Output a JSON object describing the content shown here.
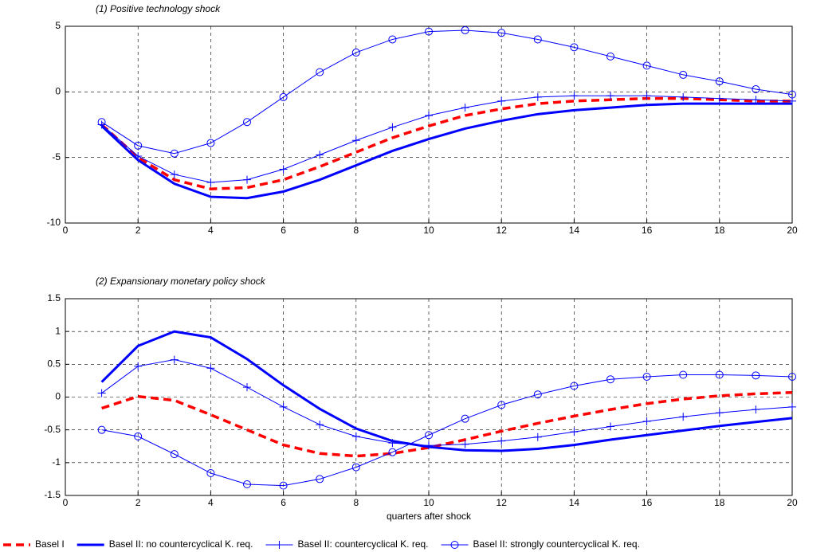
{
  "chart_data": [
    {
      "type": "line",
      "title": "(1) Positive technology shock",
      "x": [
        1,
        2,
        3,
        4,
        5,
        6,
        7,
        8,
        9,
        10,
        11,
        12,
        13,
        14,
        15,
        16,
        17,
        18,
        19,
        20
      ],
      "xlim": [
        0,
        20
      ],
      "xticks": [
        0,
        2,
        4,
        6,
        8,
        10,
        12,
        14,
        16,
        18,
        20
      ],
      "ylim": [
        -10,
        5
      ],
      "yticks": [
        -10,
        -5,
        0,
        5
      ],
      "grid": true,
      "legend": "bottom",
      "series": [
        {
          "name": "Basel I",
          "color": "#ff0000",
          "style": "dashed",
          "marker": "none",
          "linewidth": 3.5,
          "values": [
            -2.5,
            -5.0,
            -6.7,
            -7.4,
            -7.3,
            -6.7,
            -5.7,
            -4.6,
            -3.5,
            -2.6,
            -1.8,
            -1.3,
            -0.9,
            -0.7,
            -0.6,
            -0.5,
            -0.5,
            -0.6,
            -0.7,
            -0.7
          ]
        },
        {
          "name": "Basel II: no countercyclical K. req.",
          "color": "#0000ff",
          "style": "solid",
          "marker": "none",
          "linewidth": 3,
          "values": [
            -2.6,
            -5.2,
            -7.0,
            -8.0,
            -8.1,
            -7.6,
            -6.7,
            -5.6,
            -4.5,
            -3.6,
            -2.8,
            -2.2,
            -1.7,
            -1.4,
            -1.2,
            -1.0,
            -0.9,
            -0.9,
            -0.9,
            -0.9
          ]
        },
        {
          "name": "Basel II: countercyclical K. req.",
          "color": "#0000ff",
          "style": "solid",
          "marker": "plus",
          "linewidth": 1,
          "values": [
            -2.5,
            -4.9,
            -6.3,
            -6.9,
            -6.7,
            -5.9,
            -4.8,
            -3.7,
            -2.7,
            -1.8,
            -1.2,
            -0.7,
            -0.4,
            -0.3,
            -0.3,
            -0.3,
            -0.4,
            -0.5,
            -0.6,
            -0.7
          ]
        },
        {
          "name": "Basel II: strongly countercyclical K. req.",
          "color": "#0000ff",
          "style": "solid",
          "marker": "circle",
          "linewidth": 1,
          "values": [
            -2.3,
            -4.1,
            -4.7,
            -3.9,
            -2.3,
            -0.4,
            1.5,
            3.0,
            4.0,
            4.6,
            4.7,
            4.5,
            4.0,
            3.4,
            2.7,
            2.0,
            1.3,
            0.8,
            0.2,
            -0.2
          ]
        }
      ]
    },
    {
      "type": "line",
      "title": "(2) Expansionary monetary policy shock",
      "x_label": "quarters after shock",
      "x": [
        1,
        2,
        3,
        4,
        5,
        6,
        7,
        8,
        9,
        10,
        11,
        12,
        13,
        14,
        15,
        16,
        17,
        18,
        19,
        20
      ],
      "xlim": [
        0,
        20
      ],
      "xticks": [
        0,
        2,
        4,
        6,
        8,
        10,
        12,
        14,
        16,
        18,
        20
      ],
      "ylim": [
        -1.5,
        1.5
      ],
      "yticks": [
        -1.5,
        -1,
        -0.5,
        0,
        0.5,
        1,
        1.5
      ],
      "grid": true,
      "series": [
        {
          "color": "#ff0000",
          "style": "dashed",
          "marker": "none",
          "linewidth": 3.5,
          "values": [
            -0.17,
            0.01,
            -0.05,
            -0.27,
            -0.5,
            -0.73,
            -0.86,
            -0.9,
            -0.86,
            -0.77,
            -0.65,
            -0.52,
            -0.4,
            -0.29,
            -0.19,
            -0.1,
            -0.03,
            0.02,
            0.05,
            0.07
          ]
        },
        {
          "color": "#0000ff",
          "style": "solid",
          "marker": "none",
          "linewidth": 3,
          "values": [
            0.23,
            0.78,
            1.0,
            0.91,
            0.58,
            0.18,
            -0.18,
            -0.48,
            -0.67,
            -0.76,
            -0.81,
            -0.82,
            -0.79,
            -0.73,
            -0.65,
            -0.58,
            -0.51,
            -0.44,
            -0.38,
            -0.32
          ]
        },
        {
          "color": "#0000ff",
          "style": "solid",
          "marker": "plus",
          "linewidth": 1,
          "values": [
            0.06,
            0.47,
            0.57,
            0.44,
            0.15,
            -0.15,
            -0.42,
            -0.6,
            -0.7,
            -0.74,
            -0.72,
            -0.67,
            -0.61,
            -0.53,
            -0.45,
            -0.37,
            -0.3,
            -0.24,
            -0.19,
            -0.15
          ]
        },
        {
          "color": "#0000ff",
          "style": "solid",
          "marker": "circle",
          "linewidth": 1,
          "values": [
            -0.5,
            -0.6,
            -0.87,
            -1.16,
            -1.33,
            -1.35,
            -1.25,
            -1.07,
            -0.84,
            -0.58,
            -0.33,
            -0.12,
            0.04,
            0.17,
            0.27,
            0.31,
            0.34,
            0.34,
            0.33,
            0.31
          ]
        }
      ]
    }
  ]
}
